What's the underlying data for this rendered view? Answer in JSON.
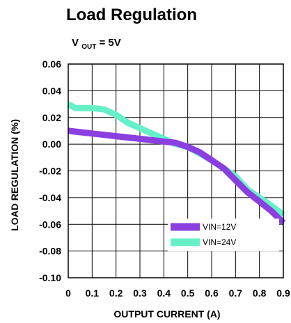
{
  "chart_data": {
    "type": "line",
    "title": "Load Regulation",
    "condition": {
      "prefix": "V",
      "subscript": "OUT",
      "suffix": " = 5V"
    },
    "xlabel": "OUTPUT CURRENT   (A)",
    "ylabel": "LOAD  REGULATION (%)",
    "xlim": [
      0,
      0.9
    ],
    "ylim": [
      -0.1,
      0.06
    ],
    "grid": true,
    "x_ticks": [
      0,
      0.1,
      0.2,
      0.3,
      0.4,
      0.5,
      0.6,
      0.7,
      0.8,
      0.9
    ],
    "x_tick_labels": [
      "0",
      "0.1",
      "0.2",
      "0.3",
      "0.4",
      "0.5",
      "0.6",
      "0.7",
      "0.8",
      "0.9"
    ],
    "y_ticks": [
      0.06,
      0.04,
      0.02,
      0.0,
      -0.02,
      -0.04,
      -0.06,
      -0.08,
      -0.1
    ],
    "y_tick_labels": [
      "0.06",
      "0.04",
      "0.02",
      "0.00",
      "-0.02",
      "-0.04",
      "-0.06",
      "-0.08",
      "-0.10"
    ],
    "legend_position": "bottom-right",
    "series": [
      {
        "name": "VIN=12V",
        "color": "#8B3FE0",
        "x": [
          0,
          0.05,
          0.1,
          0.15,
          0.2,
          0.25,
          0.3,
          0.35,
          0.4,
          0.45,
          0.5,
          0.55,
          0.6,
          0.65,
          0.7,
          0.75,
          0.8,
          0.85,
          0.9
        ],
        "y": [
          0.01,
          0.009,
          0.008,
          0.007,
          0.006,
          0.005,
          0.004,
          0.003,
          0.002,
          0.001,
          -0.002,
          -0.006,
          -0.012,
          -0.018,
          -0.027,
          -0.036,
          -0.043,
          -0.05,
          -0.059
        ]
      },
      {
        "name": "VIN=24V",
        "color": "#66F0C8",
        "x": [
          0,
          0.03,
          0.1,
          0.15,
          0.2,
          0.25,
          0.3,
          0.35,
          0.4,
          0.45,
          0.5,
          0.55,
          0.6,
          0.65,
          0.7,
          0.75,
          0.8,
          0.85,
          0.9
        ],
        "y": [
          0.03,
          0.027,
          0.027,
          0.026,
          0.022,
          0.016,
          0.012,
          0.008,
          0.004,
          0.0,
          -0.002,
          -0.007,
          -0.012,
          -0.018,
          -0.024,
          -0.034,
          -0.04,
          -0.046,
          -0.053
        ]
      }
    ]
  }
}
